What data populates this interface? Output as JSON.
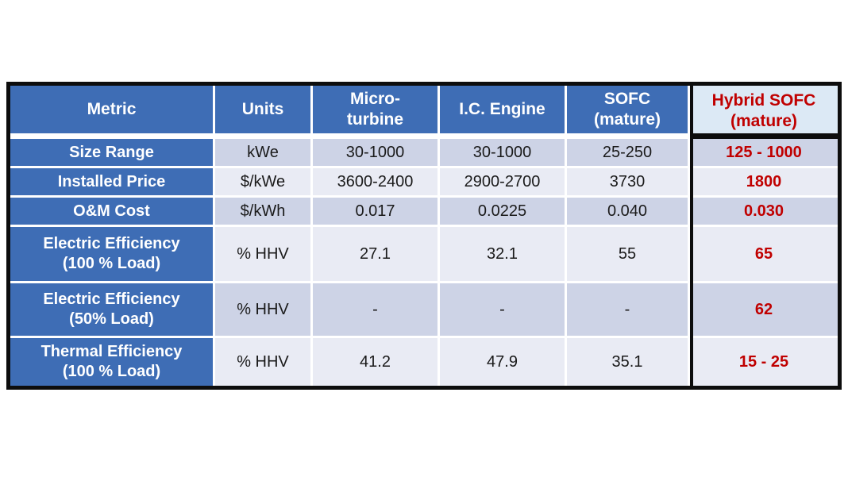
{
  "table": {
    "header": {
      "metric": "Metric",
      "units": "Units",
      "microturbine_l1": "Micro-",
      "microturbine_l2": "turbine",
      "ic_engine": "I.C. Engine",
      "sofc_l1": "SOFC",
      "sofc_l2": "(mature)",
      "hybrid_l1": "Hybrid SOFC",
      "hybrid_l2": "(mature)"
    },
    "rows": [
      {
        "metric": "Size Range",
        "units": "kWe",
        "microturbine": "30-1000",
        "ic_engine": "30-1000",
        "sofc": "25-250",
        "hybrid": "125 - 1000"
      },
      {
        "metric": "Installed Price",
        "units": "$/kWe",
        "microturbine": "3600-2400",
        "ic_engine": "2900-2700",
        "sofc": "3730",
        "hybrid": "1800"
      },
      {
        "metric": "O&M Cost",
        "units": "$/kWh",
        "microturbine": "0.017",
        "ic_engine": "0.0225",
        "sofc": "0.040",
        "hybrid": "0.030"
      },
      {
        "metric_l1": "Electric Efficiency",
        "metric_l2": "(100 % Load)",
        "units": "% HHV",
        "microturbine": "27.1",
        "ic_engine": "32.1",
        "sofc": "55",
        "hybrid": "65"
      },
      {
        "metric_l1": "Electric Efficiency",
        "metric_l2": "(50% Load)",
        "units": "% HHV",
        "microturbine": "-",
        "ic_engine": "-",
        "sofc": "-",
        "hybrid": "62"
      },
      {
        "metric_l1": "Thermal Efficiency",
        "metric_l2": "(100 % Load)",
        "units": "% HHV",
        "microturbine": "41.2",
        "ic_engine": "47.9",
        "sofc": "35.1",
        "hybrid": "15 - 25"
      }
    ],
    "colors": {
      "header_blue": "#3E6DB5",
      "band_dark": "#CDD3E6",
      "band_light": "#E9EBF4",
      "hybrid_header_bg": "#DCE9F5",
      "accent_red": "#C00000",
      "border_black": "#0D0D0D"
    }
  }
}
